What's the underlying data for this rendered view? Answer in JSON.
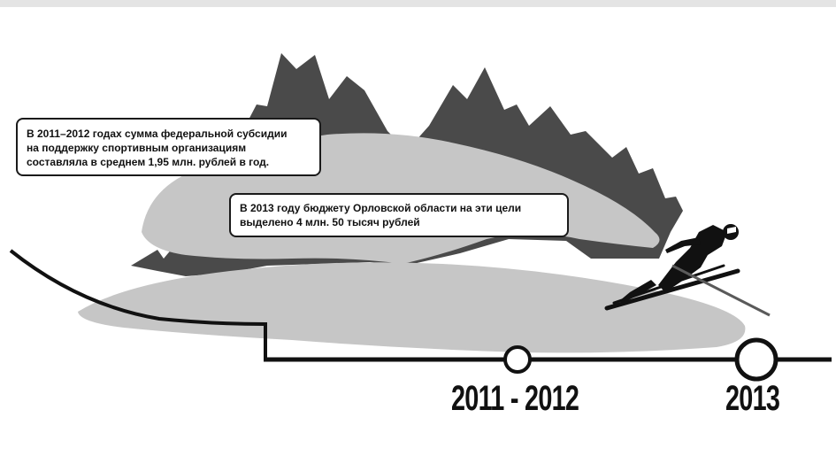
{
  "callouts": {
    "first": {
      "lines": [
        "В 2011–2012 годах сумма федеральной субсидии",
        "на поддержку спортивным организациям",
        "составляла в среднем 1,95 млн. рублей в год."
      ]
    },
    "second": {
      "lines": [
        "В 2013 году бюджету Орловской области на эти цели",
        "выделено 4 млн. 50 тысяч рублей"
      ]
    }
  },
  "timeline": {
    "markers": [
      {
        "label": "2011 - 2012"
      },
      {
        "label": "2013"
      }
    ]
  },
  "colors": {
    "mountains": "#4a4a4a",
    "snow": "#c8c8c8",
    "line": "#111111",
    "background": "#ffffff"
  },
  "icons": {
    "skier": "ski-jumper-silhouette"
  }
}
